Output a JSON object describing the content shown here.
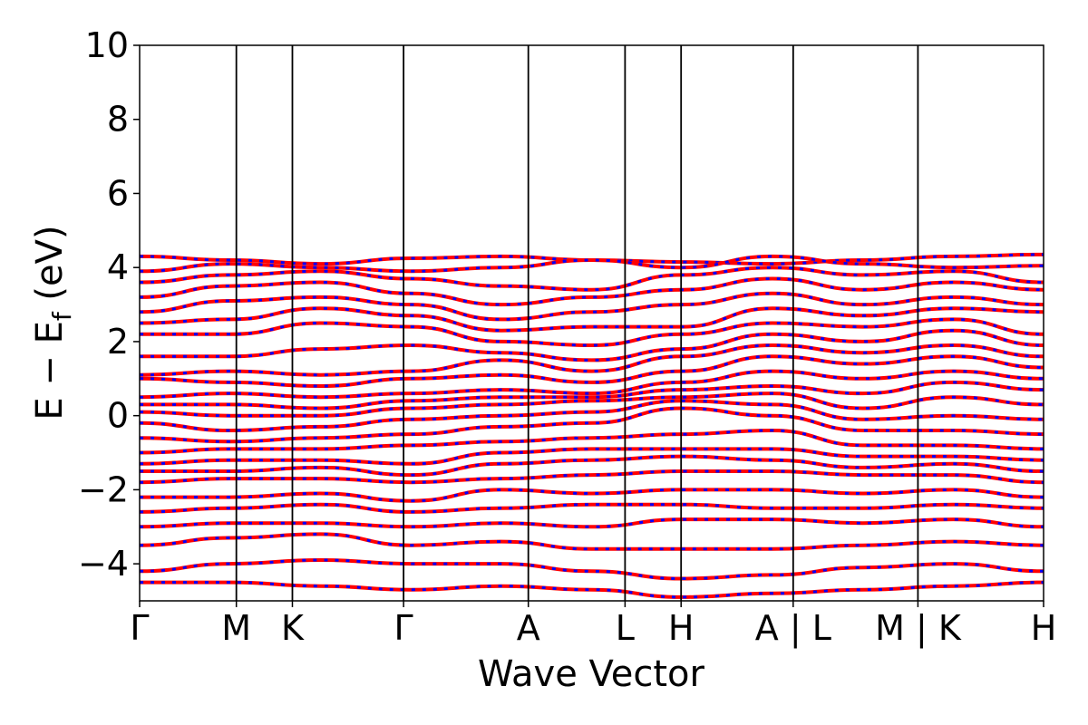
{
  "chart_data": {
    "type": "line",
    "title": "",
    "xlabel": "Wave Vector",
    "ylabel": "E − E_f (eV)",
    "ylabel_parts": {
      "main": "E − E",
      "sub": "f",
      "unit": " (eV)"
    },
    "ylim": [
      -5,
      10
    ],
    "yticks": [
      -4,
      -2,
      0,
      2,
      4,
      6,
      8,
      10
    ],
    "ytick_labels": [
      "−4",
      "−2",
      "0",
      "2",
      "4",
      "6",
      "8",
      "10"
    ],
    "grid": false,
    "xlim": [
      0,
      10
    ],
    "kpoints": [
      {
        "label": "Γ",
        "x": 0.0
      },
      {
        "label": "M",
        "x": 1.07
      },
      {
        "label": "K",
        "x": 1.69
      },
      {
        "label": "Γ",
        "x": 2.92
      },
      {
        "label": "A",
        "x": 4.3
      },
      {
        "label": "L",
        "x": 5.37
      },
      {
        "label": "H",
        "x": 5.99
      },
      {
        "label": "A | L",
        "x": 7.23
      },
      {
        "label": "M | K",
        "x": 8.61
      },
      {
        "label": "H",
        "x": 10.0
      }
    ],
    "series_style": {
      "primary_color": "#ff0000",
      "overlay_color": "#0000ff",
      "overlay_dash": "dashed"
    },
    "bands": [
      [
        4.3,
        4.2,
        4.1,
        4.25,
        4.3,
        4.2,
        4.15,
        4.1,
        4.2,
        4.3,
        4.35
      ],
      [
        3.9,
        4.1,
        4.0,
        3.9,
        4.0,
        4.2,
        4.0,
        4.3,
        4.1,
        4.0,
        4.05
      ],
      [
        3.6,
        3.8,
        3.9,
        3.7,
        3.5,
        3.4,
        3.8,
        4.0,
        3.8,
        3.9,
        3.6
      ],
      [
        3.2,
        3.5,
        3.6,
        3.3,
        3.0,
        3.2,
        3.4,
        3.7,
        3.4,
        3.6,
        3.4
      ],
      [
        2.8,
        3.1,
        3.2,
        3.0,
        2.6,
        2.8,
        3.0,
        3.3,
        3.0,
        3.2,
        3.0
      ],
      [
        2.5,
        2.6,
        2.9,
        2.7,
        2.3,
        2.4,
        2.4,
        2.9,
        2.7,
        2.9,
        2.8
      ],
      [
        2.2,
        2.2,
        2.5,
        2.4,
        2.0,
        1.9,
        2.2,
        2.5,
        2.4,
        2.6,
        2.2
      ],
      [
        1.6,
        1.6,
        1.8,
        1.9,
        1.7,
        1.5,
        1.8,
        2.2,
        2.0,
        2.3,
        1.9
      ],
      [
        1.1,
        1.2,
        1.1,
        1.2,
        1.5,
        1.2,
        1.6,
        1.9,
        1.7,
        1.9,
        1.6
      ],
      [
        1.0,
        0.9,
        0.8,
        1.0,
        1.1,
        0.9,
        1.2,
        1.6,
        1.4,
        1.6,
        1.3
      ],
      [
        0.5,
        0.6,
        0.5,
        0.6,
        0.7,
        0.6,
        0.9,
        1.2,
        1.0,
        1.2,
        1.0
      ],
      [
        0.3,
        0.3,
        0.2,
        0.4,
        0.5,
        0.5,
        0.7,
        0.8,
        0.6,
        0.9,
        0.7
      ],
      [
        0.1,
        0.0,
        0.0,
        0.2,
        0.3,
        0.4,
        0.5,
        0.6,
        0.2,
        0.5,
        0.3
      ],
      [
        -0.2,
        -0.4,
        -0.3,
        -0.1,
        0.0,
        0.1,
        0.4,
        0.3,
        -0.1,
        0.0,
        -0.1
      ],
      [
        -0.6,
        -0.7,
        -0.6,
        -0.5,
        -0.3,
        -0.2,
        0.2,
        0.0,
        -0.4,
        -0.4,
        -0.5
      ],
      [
        -1.0,
        -0.9,
        -0.9,
        -0.8,
        -0.7,
        -0.6,
        -0.5,
        -0.4,
        -0.8,
        -0.8,
        -0.9
      ],
      [
        -1.3,
        -1.2,
        -1.2,
        -1.3,
        -1.0,
        -0.9,
        -0.9,
        -0.9,
        -1.1,
        -1.1,
        -1.2
      ],
      [
        -1.5,
        -1.5,
        -1.4,
        -1.6,
        -1.3,
        -1.2,
        -1.1,
        -1.2,
        -1.4,
        -1.3,
        -1.5
      ],
      [
        -1.8,
        -1.7,
        -1.7,
        -1.8,
        -1.7,
        -1.6,
        -1.5,
        -1.5,
        -1.6,
        -1.6,
        -1.8
      ],
      [
        -2.2,
        -2.2,
        -2.1,
        -2.3,
        -2.0,
        -2.1,
        -2.0,
        -2.0,
        -2.1,
        -2.0,
        -2.2
      ],
      [
        -2.6,
        -2.5,
        -2.4,
        -2.6,
        -2.5,
        -2.4,
        -2.4,
        -2.5,
        -2.5,
        -2.4,
        -2.5
      ],
      [
        -3.0,
        -2.9,
        -2.9,
        -3.0,
        -2.9,
        -3.0,
        -2.8,
        -2.8,
        -2.9,
        -2.8,
        -3.0
      ],
      [
        -3.5,
        -3.3,
        -3.2,
        -3.5,
        -3.4,
        -3.6,
        -3.6,
        -3.6,
        -3.5,
        -3.4,
        -3.5
      ],
      [
        -4.2,
        -4.0,
        -3.9,
        -4.0,
        -4.0,
        -4.2,
        -4.4,
        -4.3,
        -4.1,
        -4.0,
        -4.2
      ],
      [
        -4.5,
        -4.5,
        -4.6,
        -4.7,
        -4.6,
        -4.7,
        -4.9,
        -4.8,
        -4.7,
        -4.6,
        -4.5
      ]
    ]
  }
}
